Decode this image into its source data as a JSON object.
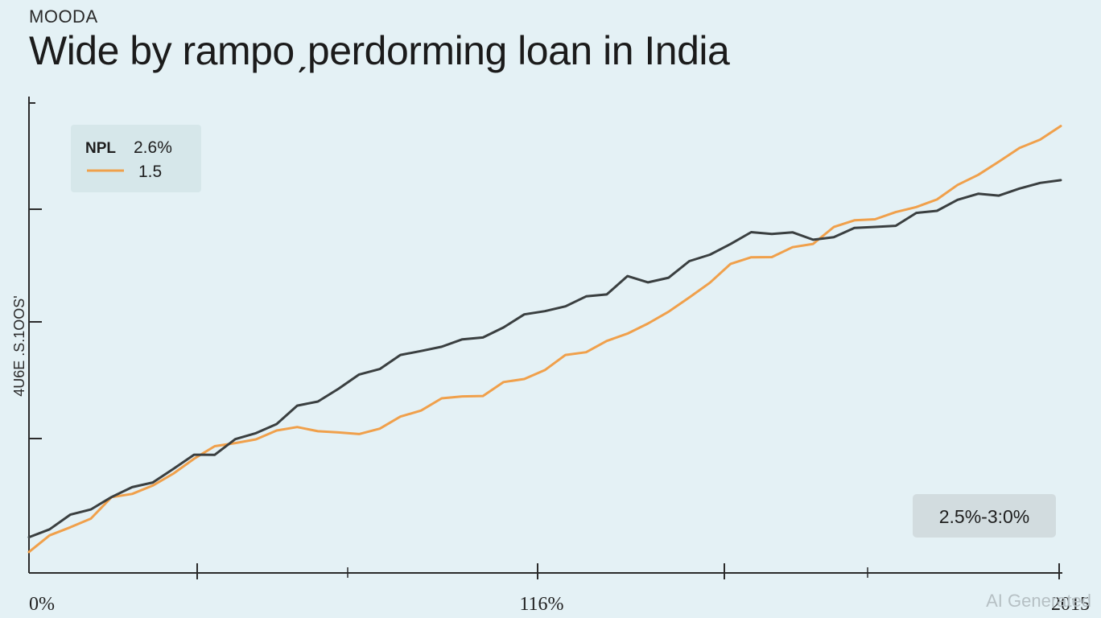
{
  "header": {
    "source": "MOODA",
    "title": "Wide by rampoˏperdorming  loan in India"
  },
  "watermark": "AI Generated",
  "chart_data": {
    "type": "line",
    "title": "Wide by rampoˏperdorming  loan in India",
    "xlabel": "",
    "ylabel": "4U6E .S.1OOS'",
    "x_tick_labels": [
      "0%",
      "116%",
      "2015"
    ],
    "legend": {
      "placement": "top-left",
      "entries": [
        {
          "label": "NPL",
          "value_text": "2.6%"
        },
        {
          "label": "1.5",
          "color": "#f0a04b"
        }
      ]
    },
    "annotation": "2.5%-3:0%",
    "grid": false,
    "xlim": [
      0,
      100
    ],
    "ylim": [
      0,
      100
    ],
    "series": [
      {
        "name": "NPL",
        "color": "#3a3f40",
        "x": [
          0,
          2,
          4,
          6,
          8,
          10,
          12,
          14,
          16,
          18,
          20,
          22,
          24,
          26,
          28,
          30,
          32,
          34,
          36,
          38,
          40,
          42,
          44,
          46,
          48,
          50,
          52,
          54,
          56,
          58,
          60,
          62,
          64,
          66,
          68,
          70,
          72,
          74,
          76,
          78,
          80,
          82,
          84,
          86,
          88,
          90,
          92,
          94,
          96,
          98,
          100
        ],
        "y": [
          6,
          8,
          10,
          12,
          15,
          17,
          19,
          21,
          24,
          25,
          28,
          30,
          32,
          35,
          37,
          40,
          43,
          45,
          47,
          48,
          50,
          51,
          52,
          54,
          56,
          58,
          59,
          61,
          62,
          65,
          64,
          66,
          69,
          71,
          73,
          75,
          76,
          76,
          74,
          75,
          76,
          77,
          78,
          80,
          81,
          83,
          84,
          85,
          86,
          87,
          88
        ]
      },
      {
        "name": "1.5",
        "color": "#f0a04b",
        "x": [
          0,
          2,
          4,
          6,
          8,
          10,
          12,
          14,
          16,
          18,
          20,
          22,
          24,
          26,
          28,
          30,
          32,
          34,
          36,
          38,
          40,
          42,
          44,
          46,
          48,
          50,
          52,
          54,
          56,
          58,
          60,
          62,
          64,
          66,
          68,
          70,
          72,
          74,
          76,
          78,
          80,
          82,
          84,
          86,
          88,
          90,
          92,
          94,
          96,
          98,
          100
        ],
        "y": [
          3,
          6,
          8,
          10,
          14,
          16,
          18,
          20,
          24,
          26,
          27,
          29,
          30,
          31,
          30,
          29,
          30,
          31,
          33,
          35,
          37,
          38,
          39,
          41,
          42,
          44,
          47,
          49,
          51,
          52,
          55,
          57,
          61,
          65,
          68,
          70,
          70,
          72,
          74,
          77,
          78,
          79,
          80,
          82,
          84,
          86,
          89,
          92,
          95,
          98,
          100
        ]
      }
    ]
  }
}
